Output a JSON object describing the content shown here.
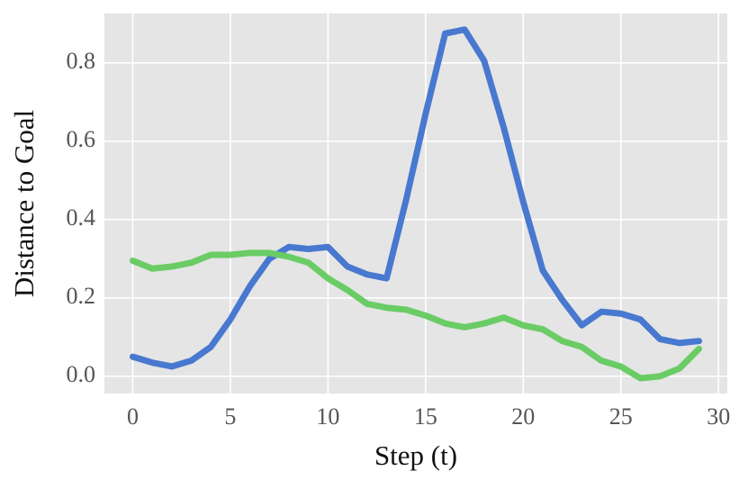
{
  "chart_data": {
    "type": "line",
    "x_label": "Step (t)",
    "y_label": "Distance to Goal",
    "x": [
      0,
      1,
      2,
      3,
      4,
      5,
      6,
      7,
      8,
      9,
      10,
      11,
      12,
      13,
      14,
      15,
      16,
      17,
      18,
      19,
      20,
      21,
      22,
      23,
      24,
      25,
      26,
      27,
      28,
      29
    ],
    "series": [
      {
        "color": "#4878cf",
        "values": [
          0.05,
          0.035,
          0.025,
          0.04,
          0.075,
          0.145,
          0.23,
          0.3,
          0.33,
          0.325,
          0.33,
          0.28,
          0.26,
          0.25,
          0.45,
          0.67,
          0.875,
          0.885,
          0.805,
          0.635,
          0.445,
          0.27,
          0.195,
          0.13,
          0.165,
          0.16,
          0.145,
          0.095,
          0.085,
          0.09
        ]
      },
      {
        "color": "#6acc65",
        "values": [
          0.295,
          0.275,
          0.28,
          0.29,
          0.31,
          0.31,
          0.315,
          0.315,
          0.305,
          0.29,
          0.25,
          0.22,
          0.185,
          0.175,
          0.17,
          0.155,
          0.135,
          0.125,
          0.135,
          0.15,
          0.13,
          0.12,
          0.09,
          0.075,
          0.04,
          0.025,
          -0.005,
          0.0,
          0.02,
          0.07
        ]
      }
    ],
    "xlim": [
      -1.45,
      30.45
    ],
    "ylim": [
      -0.044,
      0.926
    ],
    "xticks": [
      0,
      5,
      10,
      15,
      20,
      25,
      30
    ],
    "yticks": [
      {
        "value": 0,
        "label": "0.0"
      },
      0.2,
      0.4,
      0.6,
      0.8
    ],
    "grid": true
  }
}
